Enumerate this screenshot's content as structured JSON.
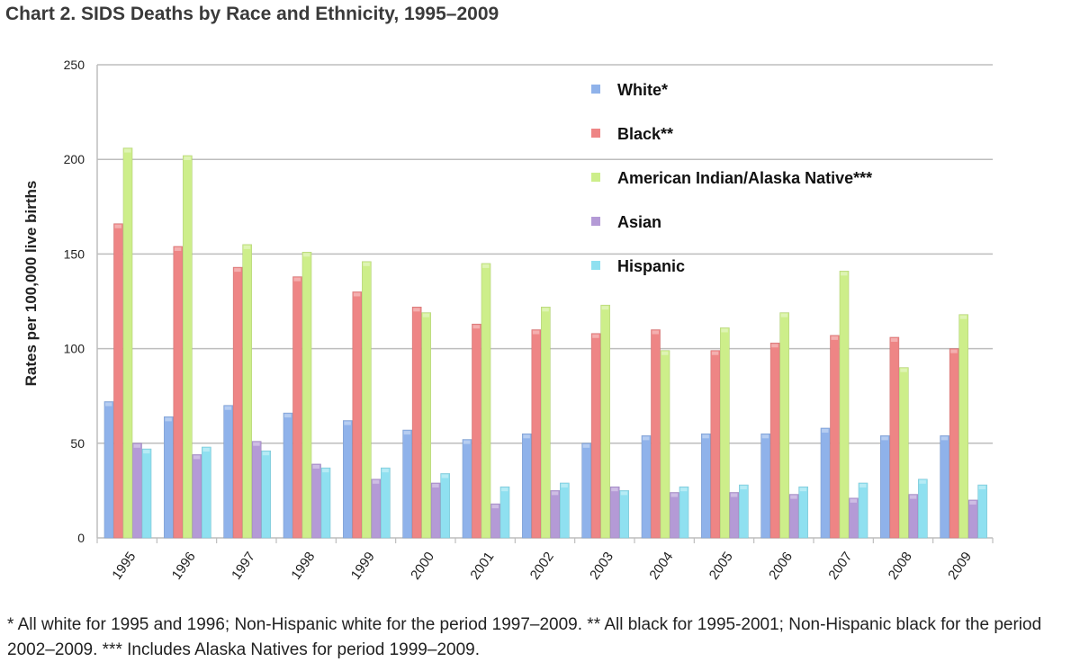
{
  "title": "Chart 2. SIDS Deaths by Race and Ethnicity, 1995–2009",
  "footnote": "* All white for 1995 and 1996; Non-Hispanic white for the period 1997–2009. ** All black for 1995-2001; Non-Hispanic black for the period 2002–2009. *** Includes Alaska Natives for period 1999–2009.",
  "colors": {
    "White": "#8fb2ea",
    "Black": "#ee8585",
    "American Indian/Alaska Native": "#cdee8a",
    "Asian": "#b49ad6",
    "Hispanic": "#8fe0f0",
    "grid": "#bdbdbd",
    "axis_text": "#222222"
  },
  "chart_data": {
    "type": "bar",
    "title": "",
    "xlabel": "",
    "ylabel": "Rates per 100,000 live births",
    "ylim": [
      0,
      250
    ],
    "yticks": [
      0,
      50,
      100,
      150,
      200,
      250
    ],
    "grid": true,
    "legend_position": "top-right",
    "categories": [
      "1995",
      "1996",
      "1997",
      "1998",
      "1999",
      "2000",
      "2001",
      "2002",
      "2003",
      "2004",
      "2005",
      "2006",
      "2007",
      "2008",
      "2009"
    ],
    "series": [
      {
        "name": "White*",
        "key": "White",
        "values": [
          72,
          64,
          70,
          66,
          62,
          57,
          52,
          55,
          50,
          54,
          55,
          55,
          58,
          54,
          54
        ]
      },
      {
        "name": "Black**",
        "key": "Black",
        "values": [
          166,
          154,
          143,
          138,
          130,
          122,
          113,
          110,
          108,
          110,
          99,
          103,
          107,
          106,
          100
        ]
      },
      {
        "name": "American Indian/Alaska Native***",
        "key": "American Indian/Alaska Native",
        "values": [
          206,
          202,
          155,
          151,
          146,
          119,
          145,
          122,
          123,
          99,
          111,
          119,
          141,
          90,
          118
        ]
      },
      {
        "name": "Asian",
        "key": "Asian",
        "values": [
          50,
          44,
          51,
          39,
          31,
          29,
          18,
          25,
          27,
          24,
          24,
          23,
          21,
          23,
          20
        ]
      },
      {
        "name": "Hispanic",
        "key": "Hispanic",
        "values": [
          47,
          48,
          46,
          37,
          37,
          34,
          27,
          29,
          25,
          27,
          28,
          27,
          29,
          31,
          28
        ]
      }
    ]
  }
}
